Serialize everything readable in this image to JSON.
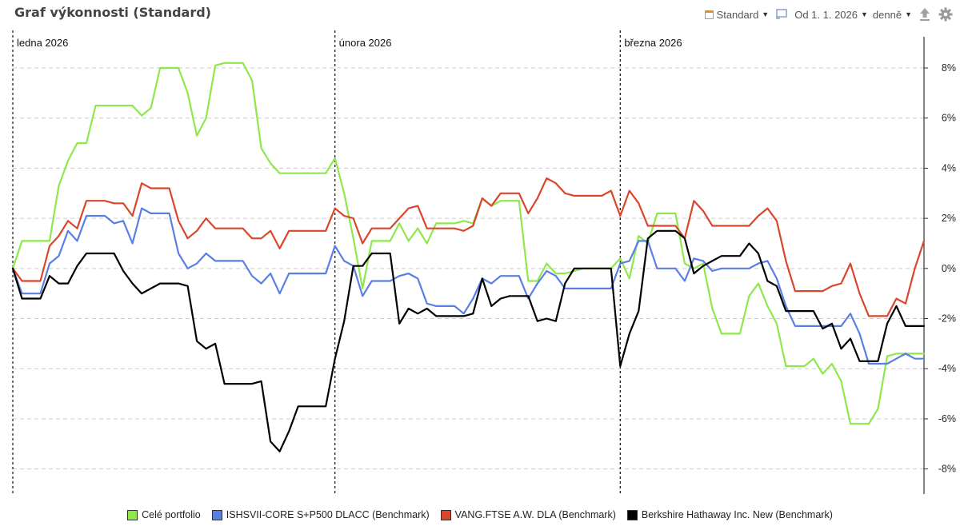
{
  "header": {
    "title": "Graf výkonnosti (Standard)",
    "view_label": "Standard",
    "range_label": "Od 1. 1. 2026",
    "interval_label": "denně",
    "icons": [
      "calendar-icon",
      "fullscreen-icon",
      "export-icon",
      "gear-icon"
    ]
  },
  "chart_data": {
    "type": "line",
    "x_count": 100,
    "ylim": [
      -9,
      9.5
    ],
    "yticks": [
      -8,
      -6,
      -4,
      -2,
      0,
      2,
      4,
      6,
      8
    ],
    "ytick_labels": [
      "-8%",
      "-6%",
      "-4%",
      "-2%",
      "0%",
      "2%",
      "4%",
      "6%",
      "8%"
    ],
    "grid": true,
    "legend_position": "bottom",
    "month_markers": [
      {
        "index": 0,
        "label": "ledna 2026"
      },
      {
        "index": 35,
        "label": "února 2026"
      },
      {
        "index": 66,
        "label": "března 2026"
      }
    ],
    "series": [
      {
        "name": "Celé portfolio",
        "color": "#8ee84c",
        "values": [
          0.0,
          1.1,
          1.1,
          1.1,
          1.1,
          3.3,
          4.3,
          5.0,
          5.0,
          6.5,
          6.5,
          6.5,
          6.5,
          6.5,
          6.1,
          6.4,
          8.0,
          8.0,
          8.0,
          7.0,
          5.3,
          6.0,
          8.1,
          8.2,
          8.2,
          8.2,
          7.5,
          4.8,
          4.2,
          3.8,
          3.8,
          3.8,
          3.8,
          3.8,
          3.8,
          4.4,
          3.0,
          1.2,
          -0.8,
          1.1,
          1.1,
          1.1,
          1.8,
          1.1,
          1.6,
          1.0,
          1.8,
          1.8,
          1.8,
          1.9,
          1.8,
          2.8,
          2.5,
          2.7,
          2.7,
          2.7,
          -0.5,
          -0.5,
          0.2,
          -0.2,
          -0.2,
          -0.1,
          0.0,
          0.0,
          0.0,
          0.0,
          0.4,
          -0.4,
          1.3,
          1.0,
          2.2,
          2.2,
          2.2,
          0.2,
          0.0,
          0.2,
          -1.6,
          -2.6,
          -2.6,
          -2.6,
          -1.1,
          -0.6,
          -1.5,
          -2.2,
          -3.9,
          -3.9,
          -3.9,
          -3.6,
          -4.2,
          -3.8,
          -4.5,
          -6.2,
          -6.2,
          -6.2,
          -5.6,
          -3.5,
          -3.4,
          -3.4,
          -3.4,
          -3.4
        ]
      },
      {
        "name": "ISHSVII-CORE S+P500 DLACC (Benchmark)",
        "color": "#5b7ee5",
        "values": [
          0.0,
          -1.0,
          -1.0,
          -1.0,
          0.2,
          0.5,
          1.5,
          1.1,
          2.1,
          2.1,
          2.1,
          1.8,
          1.9,
          1.0,
          2.4,
          2.2,
          2.2,
          2.2,
          0.6,
          0.0,
          0.2,
          0.6,
          0.3,
          0.3,
          0.3,
          0.3,
          -0.3,
          -0.6,
          -0.2,
          -1.0,
          -0.2,
          -0.2,
          -0.2,
          -0.2,
          -0.2,
          0.9,
          0.3,
          0.1,
          -1.1,
          -0.5,
          -0.5,
          -0.5,
          -0.3,
          -0.2,
          -0.4,
          -1.4,
          -1.5,
          -1.5,
          -1.5,
          -1.8,
          -1.2,
          -0.4,
          -0.6,
          -0.3,
          -0.3,
          -0.3,
          -1.2,
          -0.6,
          -0.1,
          -0.3,
          -0.8,
          -0.8,
          -0.8,
          -0.8,
          -0.8,
          -0.8,
          0.2,
          0.3,
          1.1,
          1.1,
          0.0,
          0.0,
          0.0,
          -0.5,
          0.4,
          0.3,
          -0.1,
          0.0,
          0.0,
          0.0,
          0.0,
          0.2,
          0.3,
          -0.4,
          -1.5,
          -2.3,
          -2.3,
          -2.3,
          -2.3,
          -2.3,
          -2.3,
          -1.8,
          -2.6,
          -3.8,
          -3.8,
          -3.8,
          -3.6,
          -3.4,
          -3.6,
          -3.6
        ]
      },
      {
        "name": "VANG.FTSE A.W. DLA (Benchmark)",
        "color": "#d9462b",
        "values": [
          0.0,
          -0.5,
          -0.5,
          -0.5,
          0.9,
          1.3,
          1.9,
          1.6,
          2.7,
          2.7,
          2.7,
          2.6,
          2.6,
          2.1,
          3.4,
          3.2,
          3.2,
          3.2,
          1.9,
          1.2,
          1.5,
          2.0,
          1.6,
          1.6,
          1.6,
          1.6,
          1.2,
          1.2,
          1.5,
          0.8,
          1.5,
          1.5,
          1.5,
          1.5,
          1.5,
          2.4,
          2.1,
          2.0,
          1.0,
          1.6,
          1.6,
          1.6,
          2.0,
          2.4,
          2.5,
          1.6,
          1.6,
          1.6,
          1.6,
          1.5,
          1.7,
          2.8,
          2.5,
          3.0,
          3.0,
          3.0,
          2.2,
          2.8,
          3.6,
          3.4,
          3.0,
          2.9,
          2.9,
          2.9,
          2.9,
          3.1,
          2.1,
          3.1,
          2.6,
          1.7,
          1.7,
          1.7,
          1.7,
          1.2,
          2.7,
          2.3,
          1.7,
          1.7,
          1.7,
          1.7,
          1.7,
          2.1,
          2.4,
          1.9,
          0.3,
          -0.9,
          -0.9,
          -0.9,
          -0.9,
          -0.7,
          -0.6,
          0.2,
          -1.0,
          -1.9,
          -1.9,
          -1.9,
          -1.2,
          -1.4,
          0.0,
          1.1
        ]
      },
      {
        "name": "Berkshire Hathaway Inc. New (Benchmark)",
        "color": "#000000",
        "values": [
          0.0,
          -1.2,
          -1.2,
          -1.2,
          -0.3,
          -0.6,
          -0.6,
          0.1,
          0.6,
          0.6,
          0.6,
          0.6,
          -0.1,
          -0.6,
          -1.0,
          -0.8,
          -0.6,
          -0.6,
          -0.6,
          -0.7,
          -2.9,
          -3.2,
          -3.0,
          -4.6,
          -4.6,
          -4.6,
          -4.6,
          -4.5,
          -6.9,
          -7.3,
          -6.5,
          -5.5,
          -5.5,
          -5.5,
          -5.5,
          -3.6,
          -2.1,
          0.1,
          0.1,
          0.6,
          0.6,
          0.6,
          -2.2,
          -1.6,
          -1.8,
          -1.6,
          -1.9,
          -1.9,
          -1.9,
          -1.9,
          -1.8,
          -0.4,
          -1.5,
          -1.2,
          -1.1,
          -1.1,
          -1.1,
          -2.1,
          -2.0,
          -2.1,
          -0.6,
          0.0,
          0.0,
          0.0,
          0.0,
          0.0,
          -3.9,
          -2.6,
          -1.7,
          1.2,
          1.5,
          1.5,
          1.5,
          1.2,
          -0.2,
          0.1,
          0.3,
          0.5,
          0.5,
          0.5,
          1.0,
          0.6,
          -0.5,
          -0.7,
          -1.7,
          -1.7,
          -1.7,
          -1.7,
          -2.4,
          -2.2,
          -3.2,
          -2.8,
          -3.7,
          -3.7,
          -3.7,
          -2.2,
          -1.5,
          -2.3,
          -2.3,
          -2.3
        ]
      }
    ]
  }
}
